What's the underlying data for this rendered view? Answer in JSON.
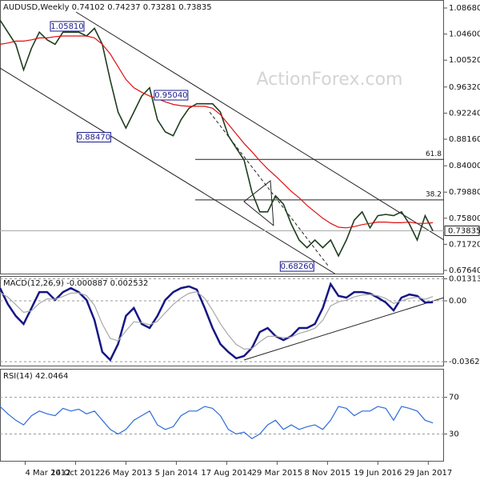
{
  "chart_data": [
    {
      "type": "line",
      "title": "AUDUSD,Weekly  0.74102 0.74237 0.73281 0.73835",
      "watermark": "ActionForex.com",
      "x": [
        "2011-11-13",
        "2011-12-18",
        "2012-01-22",
        "2012-02-26",
        "2012-04-01",
        "2012-05-06",
        "2012-06-10",
        "2012-07-15",
        "2012-08-19",
        "2012-09-23",
        "2012-10-28",
        "2012-12-02",
        "2013-01-06",
        "2013-02-10",
        "2013-03-17",
        "2013-04-21",
        "2013-05-26",
        "2013-06-30",
        "2013-08-04",
        "2013-09-08",
        "2013-10-13",
        "2013-11-17",
        "2013-12-22",
        "2014-01-26",
        "2014-03-02",
        "2014-04-06",
        "2014-05-11",
        "2014-06-15",
        "2014-07-20",
        "2014-08-24",
        "2014-09-28",
        "2014-11-02",
        "2014-12-07",
        "2015-01-11",
        "2015-02-15",
        "2015-03-22",
        "2015-04-26",
        "2015-05-31",
        "2015-07-05",
        "2015-08-09",
        "2015-09-13",
        "2015-10-18",
        "2015-11-22",
        "2015-12-27",
        "2016-01-31",
        "2016-03-06",
        "2016-04-10",
        "2016-05-15",
        "2016-06-19",
        "2016-07-24",
        "2016-08-28",
        "2016-10-02",
        "2016-11-06",
        "2016-12-11",
        "2017-01-15",
        "2017-02-19"
      ],
      "xlim": [
        "2011-11-13",
        "2017-04-09"
      ],
      "xticks": [
        {
          "value": "2012-03-04",
          "label": "4 Mar 2012"
        },
        {
          "value": "2012-10-14",
          "label": "14 Oct 2012"
        },
        {
          "value": "2013-05-26",
          "label": "26 May 2013"
        },
        {
          "value": "2014-01-05",
          "label": "5 Jan 2014"
        },
        {
          "value": "2014-08-17",
          "label": "17 Aug 2014"
        },
        {
          "value": "2015-03-29",
          "label": "29 Mar 2015"
        },
        {
          "value": "2015-11-08",
          "label": "8 Nov 2015"
        },
        {
          "value": "2016-06-19",
          "label": "19 Jun 2016"
        },
        {
          "value": "2017-01-29",
          "label": "29 Jan 2017"
        }
      ],
      "ylim": [
        0.6714,
        1.0993
      ],
      "yticks": [
        {
          "value": 1.0868,
          "label": "1.08680"
        },
        {
          "value": 1.046,
          "label": "1.04600"
        },
        {
          "value": 1.0052,
          "label": "1.00520"
        },
        {
          "value": 0.9632,
          "label": "0.96320"
        },
        {
          "value": 0.9224,
          "label": "0.92240"
        },
        {
          "value": 0.8816,
          "label": "0.88160"
        },
        {
          "value": 0.84,
          "label": "0.84000"
        },
        {
          "value": 0.7988,
          "label": "0.79880"
        },
        {
          "value": 0.758,
          "label": "0.75800"
        },
        {
          "value": 0.7172,
          "label": "0.71720"
        },
        {
          "value": 0.6764,
          "label": "0.67640"
        }
      ],
      "grid": false,
      "series": [
        {
          "color": "#1f3d1f",
          "values": [
            1.068,
            1.049,
            1.03,
            0.99,
            1.024,
            1.049,
            1.037,
            1.03,
            1.049,
            1.049,
            1.049,
            1.043,
            1.055,
            1.03,
            0.974,
            0.924,
            0.899,
            0.924,
            0.949,
            0.962,
            0.912,
            0.893,
            0.887,
            0.912,
            0.93,
            0.937,
            0.937,
            0.937,
            0.924,
            0.887,
            0.868,
            0.849,
            0.799,
            0.768,
            0.768,
            0.793,
            0.78,
            0.749,
            0.724,
            0.712,
            0.724,
            0.712,
            0.724,
            0.699,
            0.724,
            0.755,
            0.768,
            0.743,
            0.762,
            0.764,
            0.762,
            0.768,
            0.749,
            0.724,
            0.762,
            0.738
          ]
        },
        {
          "color": "#e01010",
          "values": [
            1.03,
            1.032,
            1.035,
            1.035,
            1.037,
            1.04,
            1.04,
            1.042,
            1.043,
            1.043,
            1.043,
            1.043,
            1.04,
            1.03,
            1.015,
            0.995,
            0.975,
            0.962,
            0.955,
            0.949,
            0.945,
            0.94,
            0.936,
            0.934,
            0.933,
            0.933,
            0.933,
            0.93,
            0.92,
            0.905,
            0.89,
            0.875,
            0.862,
            0.848,
            0.835,
            0.824,
            0.812,
            0.8,
            0.79,
            0.778,
            0.768,
            0.758,
            0.75,
            0.744,
            0.743,
            0.745,
            0.748,
            0.75,
            0.752,
            0.752,
            0.751,
            0.751,
            0.752,
            0.75,
            0.75,
            0.751
          ]
        }
      ],
      "last_price": 0.73835,
      "annotations": [
        {
          "value": 1.0581,
          "label": "1.05810",
          "x": "2012-06-24"
        },
        {
          "value": 0.9504,
          "label": "0.95040",
          "x": "2013-09-29"
        },
        {
          "value": 0.8847,
          "label": "0.88470",
          "x": "2012-10-21"
        },
        {
          "value": 0.6826,
          "label": "0.68260",
          "x": "2015-04-12"
        }
      ],
      "levels": [
        {
          "value": 0.85,
          "label": "61.8",
          "x": "2014-03-30"
        },
        {
          "value": 0.7866,
          "label": "38.2",
          "x": "2014-03-30"
        }
      ]
    },
    {
      "type": "line",
      "title": "MACD(12,26,9) -0.000887 0.002532",
      "ylim": [
        -0.0391,
        0.0148
      ],
      "yticks": [
        {
          "value": 0.013131,
          "label": "0.013131"
        },
        {
          "value": 0,
          "label": "0.00"
        },
        {
          "value": -0.03629,
          "label": "-0.03629"
        }
      ],
      "grid": true,
      "series": [
        {
          "color": "#161685",
          "values": [
            0.0076,
            -0.002,
            -0.009,
            -0.0138,
            -0.0043,
            0.0052,
            0.0052,
            0.0005,
            0.0052,
            0.0076,
            0.0052,
            0.0005,
            -0.0115,
            -0.0305,
            -0.0353,
            -0.0258,
            -0.009,
            -0.0043,
            -0.0138,
            -0.0162,
            -0.009,
            0.0005,
            0.0052,
            0.0076,
            0.0086,
            0.0067,
            -0.0043,
            -0.0162,
            -0.0258,
            -0.0305,
            -0.0343,
            -0.0329,
            -0.0281,
            -0.0186,
            -0.0162,
            -0.021,
            -0.0234,
            -0.021,
            -0.0162,
            -0.0162,
            -0.0138,
            -0.0043,
            0.01,
            0.0029,
            0.0019,
            0.0052,
            0.0052,
            0.0043,
            0.0019,
            -0.001,
            -0.0057,
            0.0019,
            0.0038,
            0.0029,
            -0.001,
            -0.000887
          ]
        },
        {
          "color": "#a8a8a8",
          "values": [
            0.005,
            0.0022,
            -0.0023,
            -0.0069,
            -0.0059,
            -0.0015,
            0.0012,
            0.0009,
            0.0026,
            0.0046,
            0.0048,
            0.0031,
            -0.0027,
            -0.0138,
            -0.0224,
            -0.0238,
            -0.0179,
            -0.0125,
            -0.013,
            -0.0143,
            -0.0122,
            -0.0071,
            -0.0022,
            0.0017,
            0.0045,
            0.0054,
            0.0015,
            -0.0056,
            -0.0137,
            -0.0204,
            -0.026,
            -0.0288,
            -0.0285,
            -0.0245,
            -0.0212,
            -0.0211,
            -0.022,
            -0.0216,
            -0.0194,
            -0.0181,
            -0.0164,
            -0.0116,
            -0.003,
            -0.0006,
            0.0004,
            0.0023,
            0.0035,
            0.0038,
            0.003,
            0.0014,
            -0.0015,
            -0.0001,
            0.0015,
            0.0021,
            0.0009,
            0.002532
          ]
        }
      ]
    },
    {
      "type": "line",
      "title": "RSI(14) 42.0464",
      "ylim": [
        0,
        101
      ],
      "yticks": [
        70,
        30
      ],
      "grid": true,
      "series": [
        {
          "color": "#2f6bd6",
          "values": [
            60,
            52,
            45,
            40,
            50,
            55,
            52,
            50,
            58,
            55,
            57,
            52,
            55,
            45,
            35,
            30,
            35,
            45,
            50,
            55,
            40,
            35,
            38,
            50,
            55,
            55,
            60,
            58,
            50,
            35,
            30,
            32,
            25,
            30,
            40,
            45,
            35,
            40,
            35,
            38,
            40,
            35,
            45,
            60,
            58,
            50,
            55,
            55,
            60,
            58,
            45,
            60,
            58,
            55,
            45,
            42.0464
          ]
        }
      ]
    }
  ]
}
